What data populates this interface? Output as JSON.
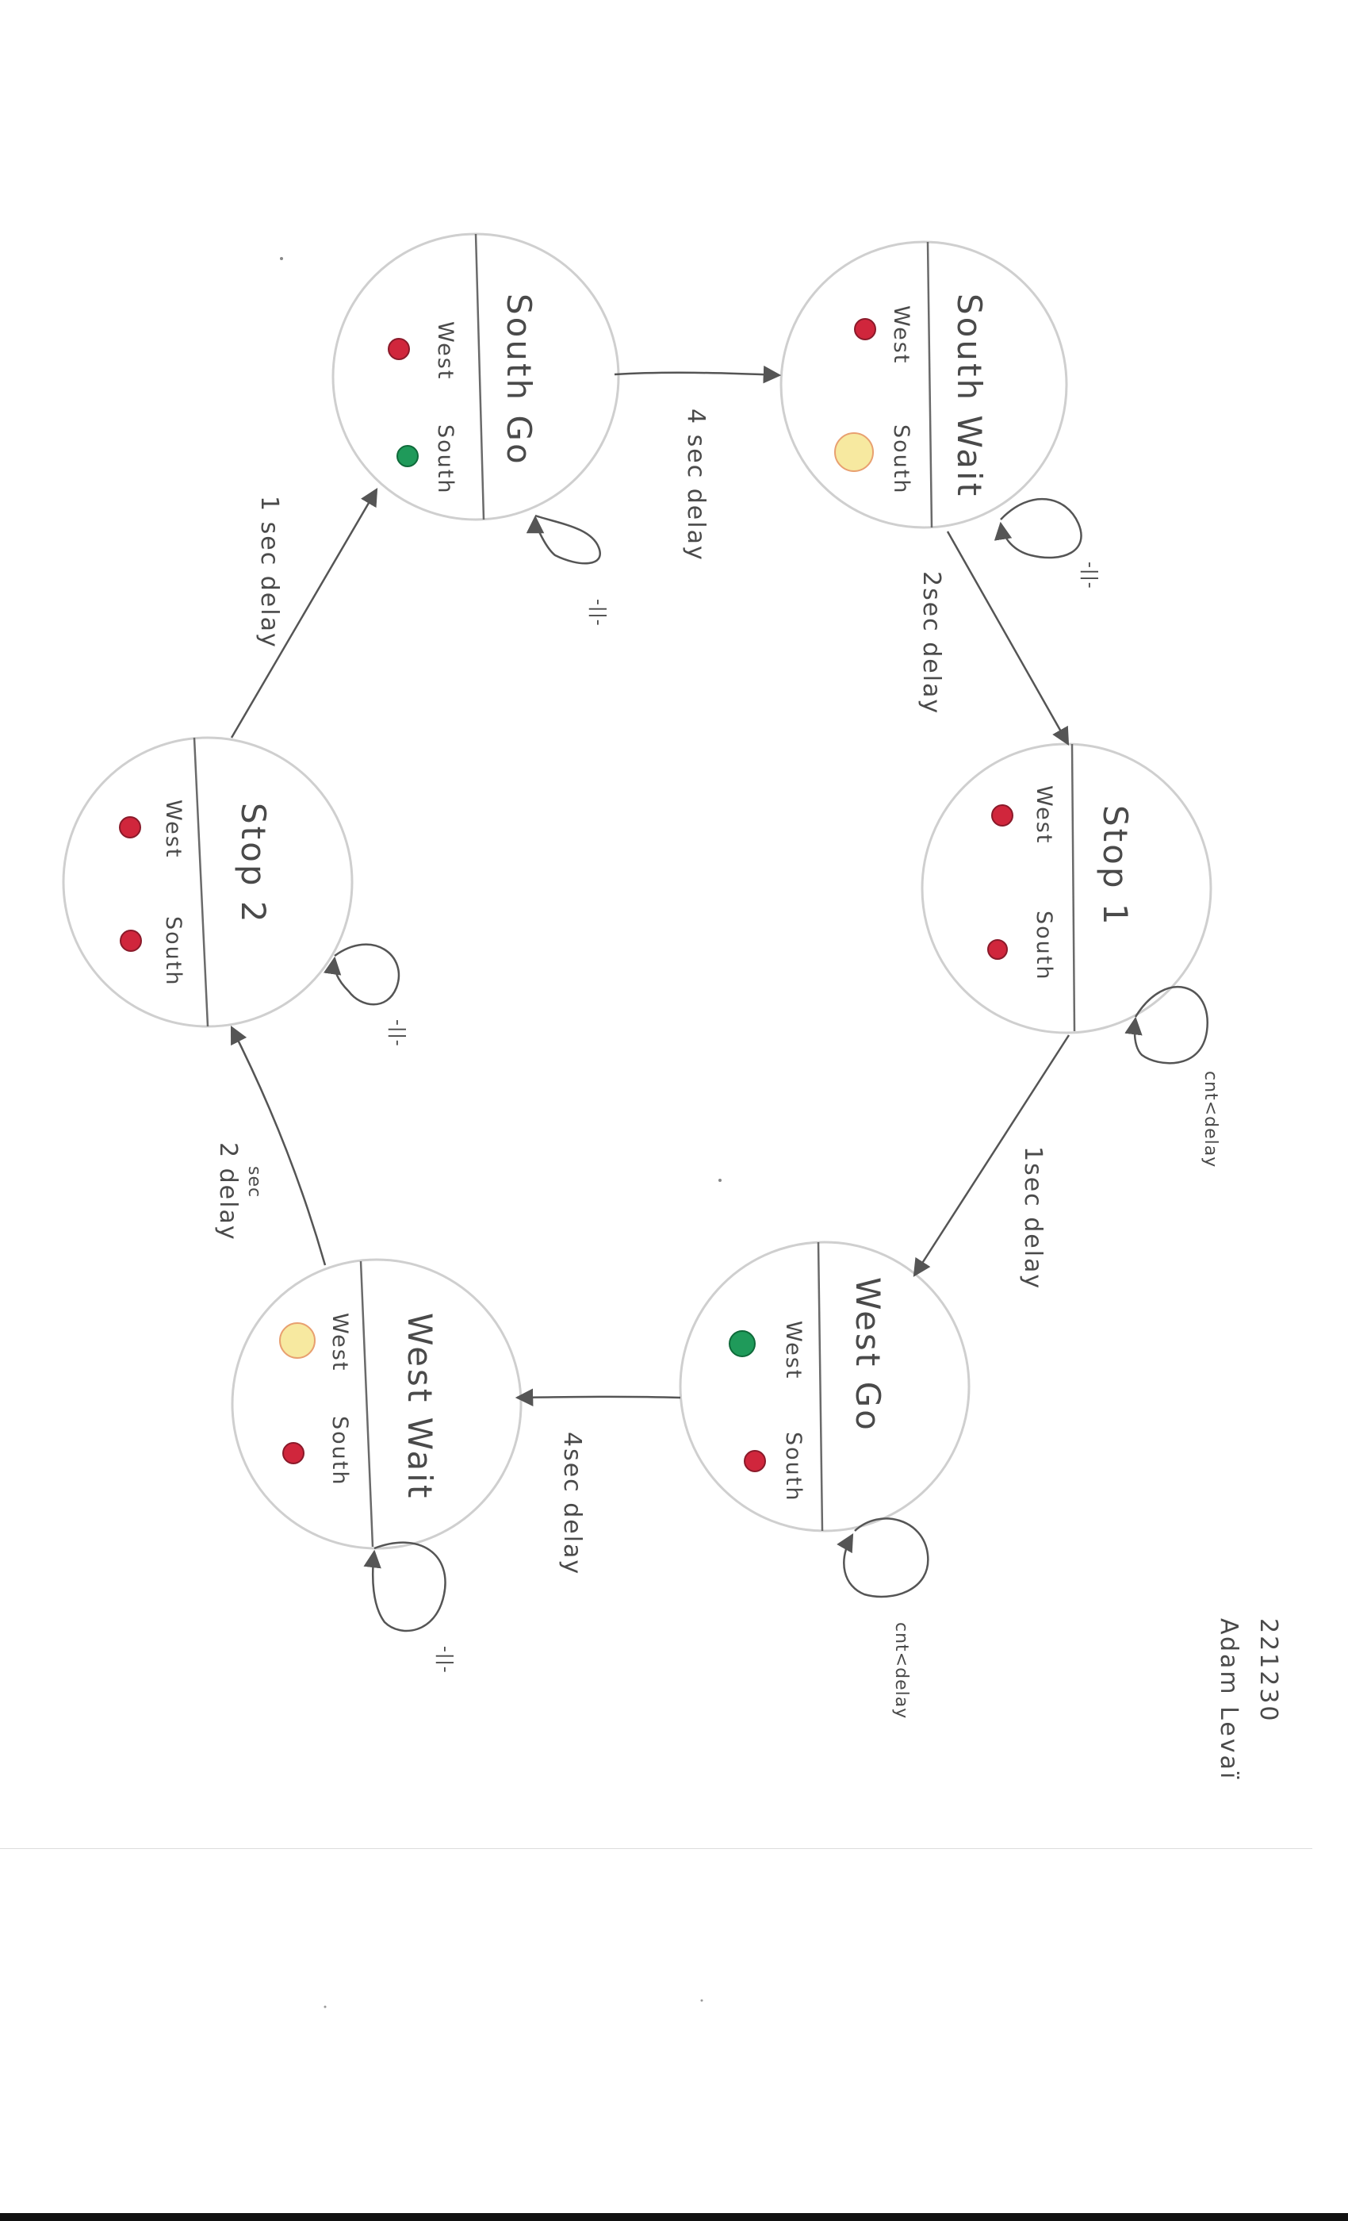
{
  "colors": {
    "ink": "#4a4a4a",
    "circle": "#cfcfcf",
    "red": "#d0263c",
    "green": "#1f9a5a",
    "yellow": "#f7e9a0",
    "yellow_ring": "#e8a070"
  },
  "states": {
    "south_go": {
      "title": "South Go",
      "west": "West",
      "south": "South",
      "west_lamp": "red",
      "south_lamp": "green"
    },
    "south_wait": {
      "title": "South Wait",
      "west": "West",
      "south": "South",
      "west_lamp": "red",
      "south_lamp": "yellow"
    },
    "stop_1": {
      "title": "Stop 1",
      "west": "West",
      "south": "South",
      "west_lamp": "red",
      "south_lamp": "red"
    },
    "west_go": {
      "title": "West Go",
      "west": "West",
      "south": "South",
      "west_lamp": "green",
      "south_lamp": "red"
    },
    "west_wait": {
      "title": "West Wait",
      "west": "West",
      "south": "South",
      "west_lamp": "yellow",
      "south_lamp": "red"
    },
    "stop_2": {
      "title": "Stop 2",
      "west": "West",
      "south": "South",
      "west_lamp": "red",
      "south_lamp": "red"
    }
  },
  "transitions": {
    "south_go_to_south_wait": "4 sec delay",
    "south_wait_to_stop_1": "2sec delay",
    "stop_1_to_west_go": "1sec delay",
    "west_go_to_west_wait": "4sec delay",
    "west_wait_to_stop_2_sec": "sec",
    "west_wait_to_stop_2_delay": "2 delay",
    "stop_2_to_south_go": "1 sec delay"
  },
  "self_loops": {
    "south_go": "-||-",
    "south_wait": "-||-",
    "stop_1": "cnt<delay",
    "west_go": "cnt<delay",
    "west_wait": "-||-",
    "stop_2": "-||-"
  },
  "author": {
    "id": "221230",
    "name": "Adam Levaï"
  }
}
